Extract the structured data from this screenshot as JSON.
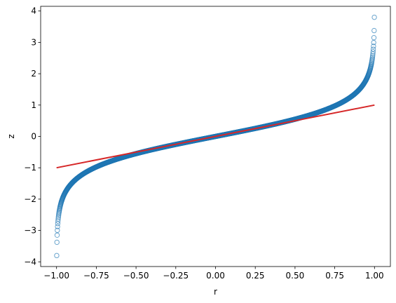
{
  "chart_data": {
    "type": "scatter",
    "title": "",
    "xlabel": "r",
    "ylabel": "z",
    "xlim": [
      -1.1,
      1.1
    ],
    "ylim": [
      -4.15,
      4.15
    ],
    "x_ticks": [
      -1.0,
      -0.75,
      -0.5,
      -0.25,
      0.0,
      0.25,
      0.5,
      0.75,
      1.0
    ],
    "x_tick_labels": [
      "−1.00",
      "−0.75",
      "−0.50",
      "−0.25",
      "0.00",
      "0.25",
      "0.50",
      "0.75",
      "1.00"
    ],
    "y_ticks": [
      -4,
      -3,
      -2,
      -1,
      0,
      1,
      2,
      3,
      4
    ],
    "y_tick_labels": [
      "−4",
      "−3",
      "−2",
      "−1",
      "0",
      "1",
      "2",
      "3",
      "4"
    ],
    "grid": false,
    "legend": "none",
    "series": [
      {
        "kind": "scatter",
        "marker": "open-circle",
        "color": "#1f77b4",
        "relation": "z = arctanh(r)",
        "x_range": [
          -0.999,
          0.999
        ],
        "y_range": [
          -3.8,
          3.8
        ]
      },
      {
        "kind": "line",
        "color": "#d62728",
        "relation": "z = r",
        "x": [
          -1.0,
          1.0
        ],
        "y": [
          -1.0,
          1.0
        ]
      }
    ]
  }
}
